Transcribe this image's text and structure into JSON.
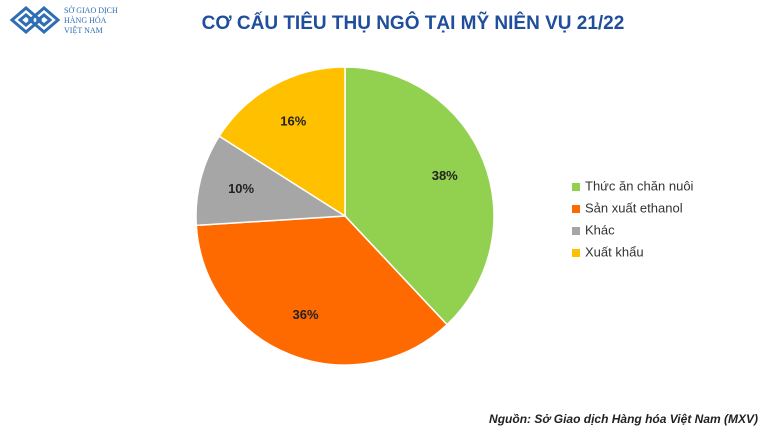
{
  "logo": {
    "lines": [
      "SỞ GIAO DỊCH",
      "HÀNG HÓA",
      "VIỆT NAM"
    ]
  },
  "chart_data": {
    "type": "pie",
    "title": "CƠ CẤU TIÊU THỤ NGÔ TẠI MỸ NIÊN VỤ 21/22",
    "categories": [
      "Thức ăn chăn nuôi",
      "Sản xuất ethanol",
      "Khác",
      "Xuất khẩu"
    ],
    "values": [
      38,
      36,
      10,
      16
    ],
    "value_labels": [
      "38%",
      "36%",
      "10%",
      "16%"
    ],
    "colors": [
      "#92d050",
      "#ff6a00",
      "#a6a6a6",
      "#ffc000"
    ],
    "legend": "right",
    "source": "Nguồn: Sở Giao dịch Hàng hóa Việt Nam (MXV)"
  }
}
